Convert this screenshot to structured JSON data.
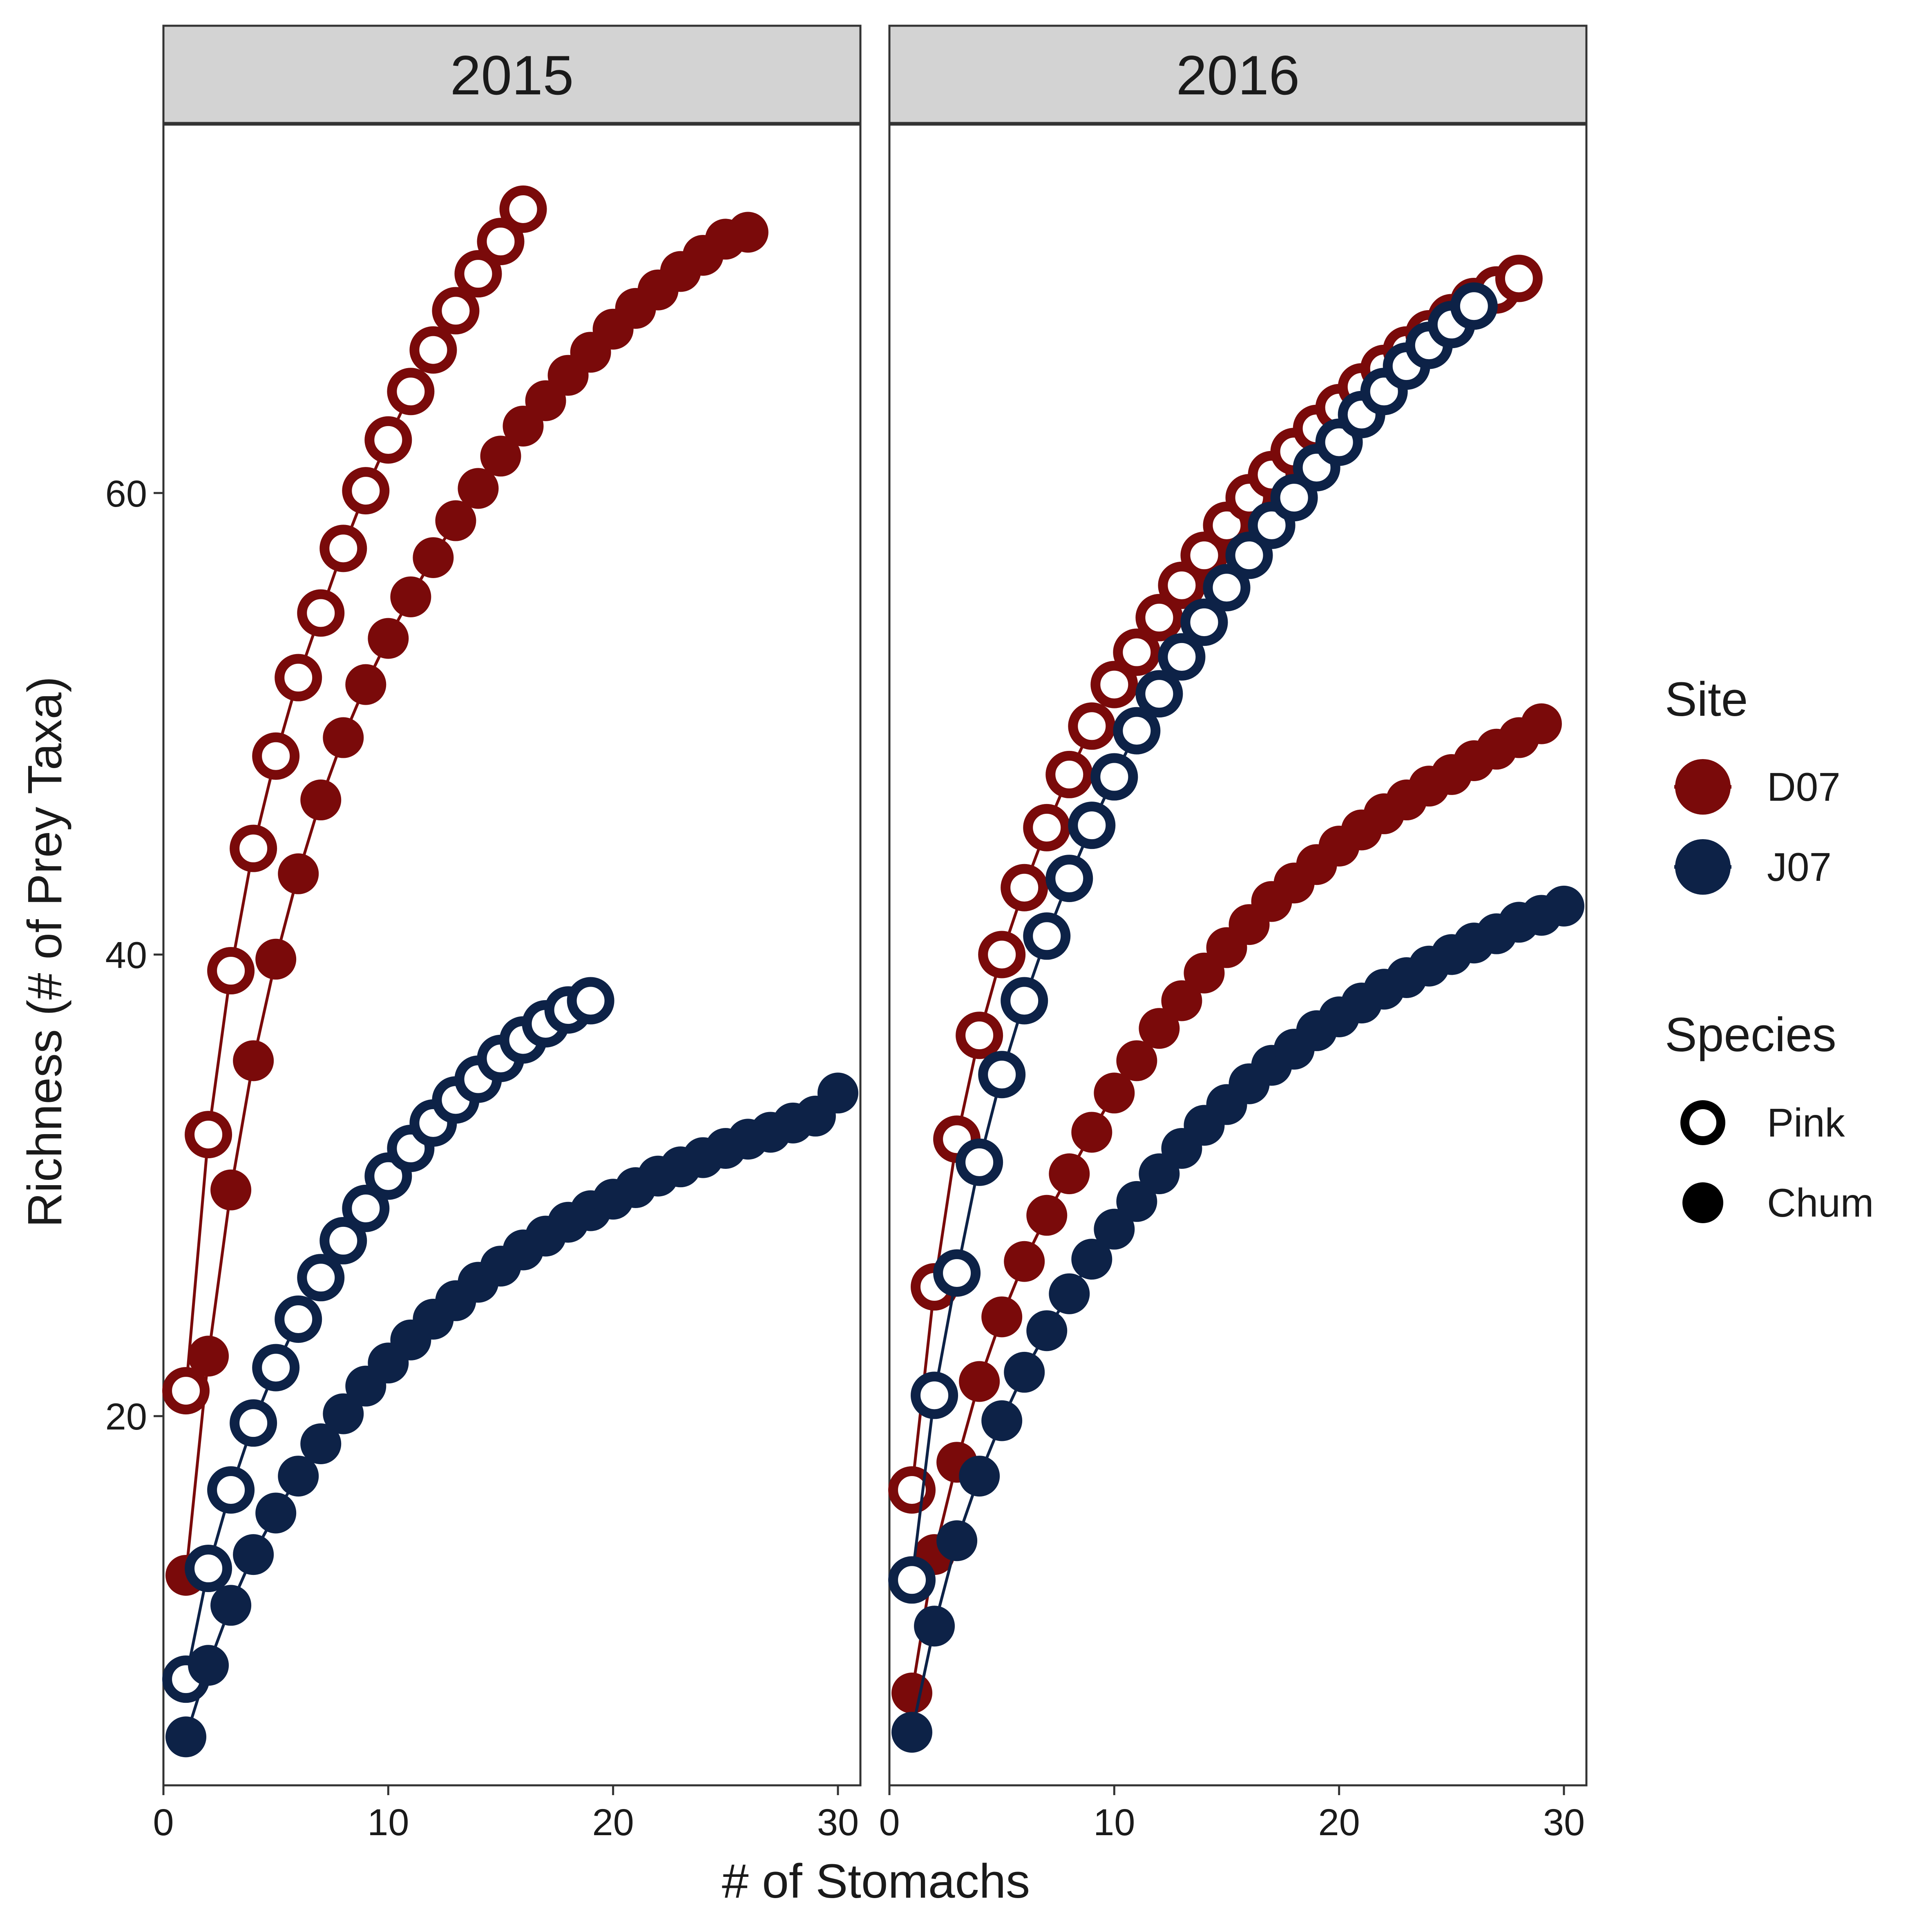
{
  "chart_data": {
    "type": "line",
    "xlabel": "# of Stomachs",
    "ylabel": "Richness (# of Prey Taxa)",
    "xlim": [
      0,
      31
    ],
    "ylim": [
      4,
      76
    ],
    "xticks": [
      0,
      10,
      20,
      30
    ],
    "yticks": [
      20,
      40,
      60
    ],
    "grid": false,
    "legend_position": "right",
    "site_colors": {
      "D07": "#7a0a0a",
      "J07": "#0d2247"
    },
    "legend": {
      "site_title": "Site",
      "sites": [
        "D07",
        "J07"
      ],
      "species_title": "Species",
      "species": [
        "Pink",
        "Chum"
      ]
    },
    "facets": [
      {
        "label": "2015",
        "series": [
          {
            "site": "D07",
            "species": "Pink",
            "x": [
              1,
              2,
              3,
              4,
              5,
              6,
              7,
              8,
              9,
              10,
              11,
              12,
              13,
              14,
              15,
              16
            ],
            "y": [
              21.1,
              32.2,
              39.3,
              44.6,
              48.6,
              52.0,
              54.8,
              57.6,
              60.1,
              62.3,
              64.4,
              66.2,
              67.9,
              69.5,
              70.9,
              72.3
            ]
          },
          {
            "site": "D07",
            "species": "Chum",
            "x": [
              1,
              2,
              3,
              4,
              5,
              6,
              7,
              8,
              9,
              10,
              11,
              12,
              13,
              14,
              15,
              16,
              17,
              18,
              19,
              20,
              21,
              22,
              23,
              24,
              25,
              26
            ],
            "y": [
              13.1,
              22.6,
              29.8,
              35.4,
              39.8,
              43.5,
              46.7,
              49.4,
              51.7,
              53.7,
              55.5,
              57.2,
              58.8,
              60.2,
              61.6,
              62.9,
              64.0,
              65.1,
              66.1,
              67.1,
              68.0,
              68.8,
              69.6,
              70.3,
              71.0,
              71.3
            ]
          },
          {
            "site": "J07",
            "species": "Pink",
            "x": [
              1,
              2,
              3,
              4,
              5,
              6,
              7,
              8,
              9,
              10,
              11,
              12,
              13,
              14,
              15,
              16,
              17,
              18,
              19
            ],
            "y": [
              8.6,
              13.4,
              16.8,
              19.7,
              22.1,
              24.2,
              26.0,
              27.6,
              29.0,
              30.4,
              31.6,
              32.7,
              33.7,
              34.6,
              35.5,
              36.3,
              37.0,
              37.6,
              38.0
            ]
          },
          {
            "site": "J07",
            "species": "Chum",
            "x": [
              1,
              2,
              3,
              4,
              5,
              6,
              7,
              8,
              9,
              10,
              11,
              12,
              13,
              14,
              15,
              16,
              17,
              18,
              19,
              20,
              21,
              22,
              23,
              24,
              25,
              26,
              27,
              28,
              29,
              30
            ],
            "y": [
              6.1,
              9.2,
              11.8,
              14.0,
              15.8,
              17.4,
              18.8,
              20.1,
              21.3,
              22.3,
              23.3,
              24.2,
              25.0,
              25.8,
              26.5,
              27.2,
              27.8,
              28.4,
              28.9,
              29.4,
              29.9,
              30.4,
              30.8,
              31.2,
              31.6,
              32.0,
              32.3,
              32.7,
              33.0,
              34.0
            ]
          }
        ]
      },
      {
        "label": "2016",
        "series": [
          {
            "site": "D07",
            "species": "Pink",
            "x": [
              1,
              2,
              3,
              4,
              5,
              6,
              7,
              8,
              9,
              10,
              11,
              12,
              13,
              14,
              15,
              16,
              17,
              18,
              19,
              20,
              21,
              22,
              23,
              24,
              25,
              26,
              27,
              28
            ],
            "y": [
              16.8,
              25.6,
              32.0,
              36.5,
              40.0,
              42.9,
              45.5,
              47.8,
              49.9,
              51.7,
              53.1,
              54.6,
              56.0,
              57.3,
              58.6,
              59.8,
              60.8,
              61.8,
              62.8,
              63.7,
              64.6,
              65.4,
              66.2,
              66.9,
              67.6,
              68.3,
              68.8,
              69.3
            ]
          },
          {
            "site": "D07",
            "species": "Chum",
            "x": [
              1,
              2,
              3,
              4,
              5,
              6,
              7,
              8,
              9,
              10,
              11,
              12,
              13,
              14,
              15,
              16,
              17,
              18,
              19,
              20,
              21,
              22,
              23,
              24,
              25,
              26,
              27,
              28,
              29
            ],
            "y": [
              8.0,
              14.0,
              18.0,
              21.5,
              24.3,
              26.7,
              28.7,
              30.5,
              32.3,
              34.0,
              35.4,
              36.8,
              38.0,
              39.2,
              40.3,
              41.3,
              42.3,
              43.1,
              43.9,
              44.7,
              45.4,
              46.1,
              46.7,
              47.3,
              47.8,
              48.4,
              48.9,
              49.4,
              50.0
            ]
          },
          {
            "site": "J07",
            "species": "Pink",
            "x": [
              1,
              2,
              3,
              4,
              5,
              6,
              7,
              8,
              9,
              10,
              11,
              12,
              13,
              14,
              15,
              16,
              17,
              18,
              19,
              20,
              21,
              22,
              23,
              24,
              25,
              26
            ],
            "y": [
              12.9,
              20.9,
              26.2,
              31.0,
              34.8,
              38.0,
              40.8,
              43.3,
              45.6,
              47.7,
              49.7,
              51.3,
              52.9,
              54.4,
              55.9,
              57.3,
              58.6,
              59.8,
              61.1,
              62.2,
              63.4,
              64.4,
              65.5,
              66.4,
              67.3,
              68.1
            ]
          },
          {
            "site": "J07",
            "species": "Chum",
            "x": [
              1,
              2,
              3,
              4,
              5,
              6,
              7,
              8,
              9,
              10,
              11,
              12,
              13,
              14,
              15,
              16,
              17,
              18,
              19,
              20,
              21,
              22,
              23,
              24,
              25,
              26,
              27,
              28,
              29,
              30
            ],
            "y": [
              6.3,
              10.9,
              14.6,
              17.4,
              19.8,
              21.9,
              23.7,
              25.3,
              26.8,
              28.1,
              29.3,
              30.5,
              31.6,
              32.6,
              33.5,
              34.4,
              35.2,
              35.9,
              36.7,
              37.3,
              37.9,
              38.5,
              39.0,
              39.5,
              40.0,
              40.5,
              40.9,
              41.4,
              41.7,
              42.1
            ]
          }
        ]
      }
    ]
  }
}
